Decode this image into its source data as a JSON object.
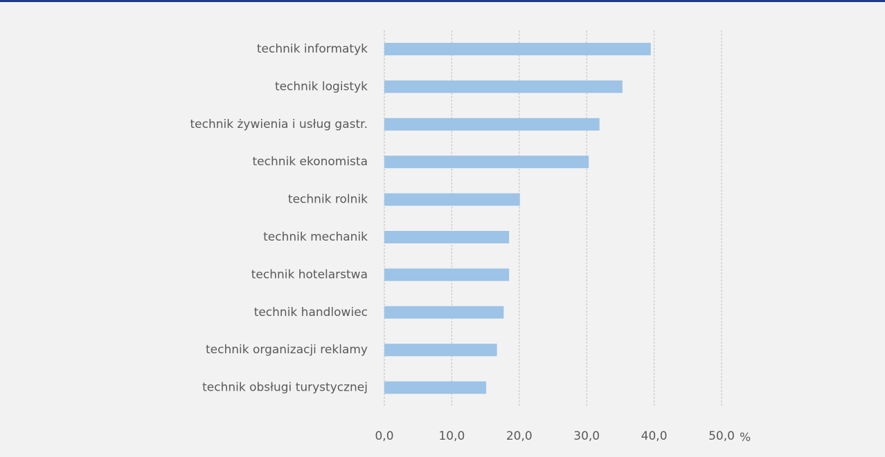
{
  "chart_data": {
    "type": "bar",
    "orientation": "horizontal",
    "categories": [
      "technik informatyk",
      "technik logistyk",
      "technik żywienia i usług gastr.",
      "technik ekonomista",
      "technik rolnik",
      "technik mechanik",
      "technik hotelarstwa",
      "technik handlowiec",
      "technik organizacji reklamy",
      "technik obsługi turystycznej"
    ],
    "values": [
      39.5,
      35.3,
      31.9,
      30.3,
      20.1,
      18.5,
      18.5,
      17.7,
      16.7,
      15.1
    ],
    "color": "#9dc3e6",
    "xlim": [
      0,
      50
    ],
    "xticks": [
      {
        "value": 0,
        "label": "0,0"
      },
      {
        "value": 10,
        "label": "10,0"
      },
      {
        "value": 20,
        "label": "20,0"
      },
      {
        "value": 30,
        "label": "30,0"
      },
      {
        "value": 40,
        "label": "40,0"
      },
      {
        "value": 50,
        "label": "50,0"
      }
    ],
    "x_unit": "%",
    "grid": true
  }
}
